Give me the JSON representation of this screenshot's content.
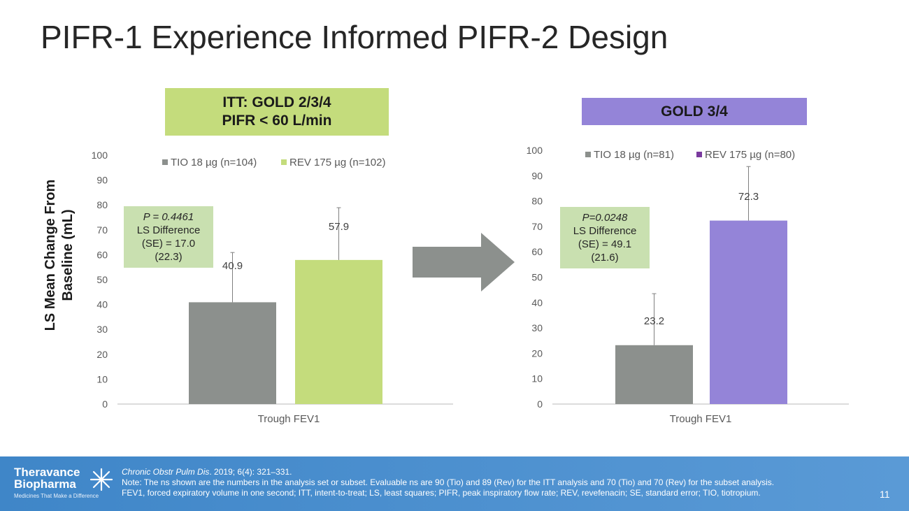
{
  "slide": {
    "title": "PIFR-1 Experience Informed PIFR-2 Design",
    "ylabel_line1": "LS Mean Change From",
    "ylabel_line2": "Baseline (mL)",
    "page_number": "11"
  },
  "colors": {
    "tio": "#8c908d",
    "rev_itt": "#c4dc7c",
    "rev_gold": "#9484d8",
    "banner_left": "#c4dc7c",
    "banner_right": "#9484d8",
    "stat_box": "#c9e0b0",
    "arrow": "#8c908d",
    "footer": "#4a8ccc"
  },
  "left_panel": {
    "banner_line1": "ITT: GOLD 2/3/4",
    "banner_line2": "PIFR < 60 L/min",
    "stat_p": "P = 0.4461",
    "stat_line2": "LS Difference",
    "stat_line3": "(SE) = 17.0",
    "stat_line4": "(22.3)"
  },
  "right_panel": {
    "banner": "GOLD 3/4",
    "stat_p": "P=0.0248",
    "stat_line2": "LS Difference",
    "stat_line3": "(SE) = 49.1",
    "stat_line4": "(21.6)"
  },
  "chart_data": [
    {
      "type": "bar",
      "categories": [
        "Trough FEV1"
      ],
      "ylim": [
        0,
        100
      ],
      "yticks": [
        0,
        10,
        20,
        30,
        40,
        50,
        60,
        70,
        80,
        90,
        100
      ],
      "legend_position": "top",
      "series": [
        {
          "name": "TIO 18 µg (n=104)",
          "values": [
            40.9
          ],
          "error": [
            20.0
          ],
          "label": "40.9",
          "color": "#8c908d"
        },
        {
          "name": "REV 175 µg (n=102)",
          "values": [
            57.9
          ],
          "error": [
            21.0
          ],
          "label": "57.9",
          "color": "#c4dc7c"
        }
      ]
    },
    {
      "type": "bar",
      "categories": [
        "Trough FEV1"
      ],
      "ylim": [
        0,
        100
      ],
      "yticks": [
        0,
        10,
        20,
        30,
        40,
        50,
        60,
        70,
        80,
        90,
        100
      ],
      "legend_position": "top",
      "series": [
        {
          "name": "TIO 18 µg (n=81)",
          "values": [
            23.2
          ],
          "error": [
            20.3
          ],
          "label": "23.2",
          "color": "#8c908d"
        },
        {
          "name": "REV 175 µg (n=80)",
          "values": [
            72.3
          ],
          "error": [
            21.3
          ],
          "label": "72.3",
          "color": "#9484d8"
        }
      ]
    }
  ],
  "footer": {
    "logo_line1": "Theravance",
    "logo_line2": "Biopharma",
    "logo_tagline": "Medicines That Make a Difference",
    "citation_journal": "Chronic Obstr Pulm Dis",
    "citation_rest": ". 2019; 6(4): 321–331.",
    "note": "Note: The ns shown are the numbers in the analysis set or subset. Evaluable ns are 90 (Tio) and 89 (Rev) for the ITT analysis and 70 (Tio) and 70 (Rev) for the subset analysis.",
    "abbreviations": "FEV1, forced expiratory volume in one second; ITT, intent-to-treat; LS, least squares; PIFR, peak inspiratory flow rate; REV, revefenacin; SE, standard error; TIO, tiotropium."
  }
}
